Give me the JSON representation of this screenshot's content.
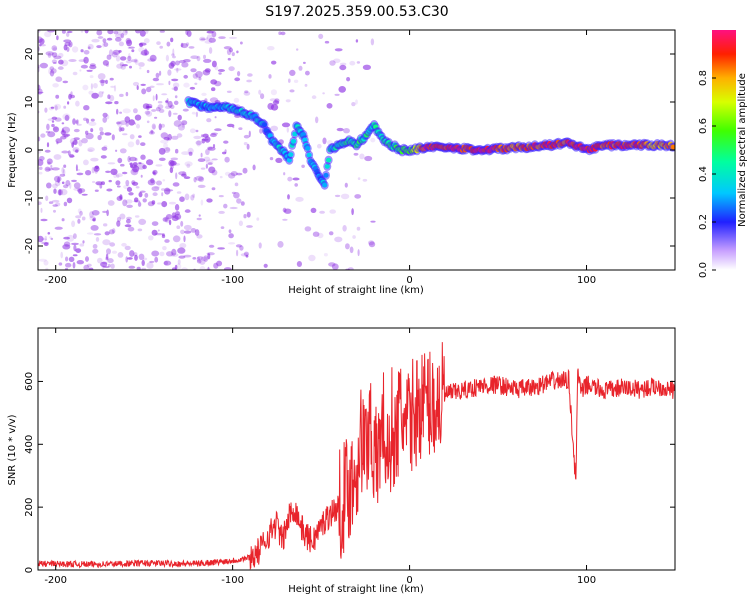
{
  "title": "S197.2025.359.00.53.C30",
  "colors": {
    "snr_line": "#e8242b",
    "axis": "#000000",
    "speckle": "#8a2be2"
  },
  "chart_data": [
    {
      "type": "heatmap",
      "name": "spectrogram",
      "xlabel": "Height of straight line (km)",
      "ylabel": "Frequency (Hz)",
      "xlim": [
        -210,
        150
      ],
      "ylim": [
        -25,
        25
      ],
      "xticks": [
        -200,
        -100,
        0,
        100
      ],
      "yticks": [
        -20,
        -10,
        0,
        10,
        20
      ],
      "ridge_track": {
        "x": [
          -125,
          -115,
          -105,
          -95,
          -88,
          -82,
          -78,
          -72,
          -68,
          -64,
          -60,
          -56,
          -52,
          -48,
          -45,
          -40,
          -35,
          -30,
          -25,
          -20,
          -15,
          -10,
          -5,
          0,
          10,
          20,
          40,
          60,
          80,
          90,
          100,
          110,
          120,
          140,
          150
        ],
        "y": [
          10,
          9,
          9,
          8,
          7,
          5,
          2,
          0,
          -2,
          5,
          3,
          -2,
          -5,
          -7,
          0,
          1,
          2,
          1,
          3,
          5,
          2,
          1,
          0,
          0,
          0.5,
          0.5,
          0,
          0.5,
          1,
          1.5,
          0,
          1,
          1,
          1,
          1
        ],
        "amplitude": [
          0.3,
          0.3,
          0.35,
          0.35,
          0.35,
          0.3,
          0.3,
          0.35,
          0.3,
          0.4,
          0.35,
          0.3,
          0.3,
          0.3,
          0.4,
          0.4,
          0.45,
          0.45,
          0.45,
          0.4,
          0.45,
          0.45,
          0.5,
          0.55,
          0.95,
          0.9,
          0.95,
          0.85,
          0.9,
          0.9,
          0.95,
          0.85,
          0.9,
          0.8,
          0.8
        ]
      },
      "colorbar": {
        "label": "Normalized spectral amplitude",
        "range": [
          0,
          1
        ],
        "ticks": [
          0.0,
          0.2,
          0.4,
          0.6,
          0.8
        ],
        "tick_labels": [
          "0.0",
          "0.2",
          "0.4",
          "0.6",
          "0.8"
        ]
      }
    },
    {
      "type": "line",
      "name": "snr",
      "xlabel": "Height of straight line (km)",
      "ylabel": "SNR (10 * v/v)",
      "xlim": [
        -210,
        150
      ],
      "ylim": [
        0,
        770
      ],
      "xticks": [
        -200,
        -100,
        0,
        100
      ],
      "yticks": [
        0,
        200,
        400,
        600
      ],
      "series": [
        {
          "name": "SNR",
          "x": [
            -210,
            -180,
            -150,
            -120,
            -100,
            -90,
            -85,
            -80,
            -75,
            -72,
            -68,
            -65,
            -60,
            -55,
            -50,
            -45,
            -40,
            -35,
            -30,
            -28,
            -25,
            -22,
            -20,
            -18,
            -15,
            -12,
            -10,
            -8,
            -5,
            -2,
            0,
            5,
            10,
            15,
            20,
            30,
            40,
            50,
            60,
            70,
            80,
            90,
            94,
            95,
            97,
            100,
            110,
            120,
            130,
            140,
            150
          ],
          "y": [
            20,
            18,
            22,
            20,
            30,
            40,
            60,
            110,
            150,
            90,
            170,
            200,
            120,
            90,
            140,
            180,
            200,
            260,
            310,
            430,
            370,
            500,
            330,
            360,
            480,
            310,
            470,
            400,
            520,
            430,
            480,
            520,
            540,
            520,
            560,
            570,
            585,
            590,
            575,
            580,
            600,
            605,
            270,
            640,
            560,
            590,
            570,
            580,
            575,
            585,
            570
          ]
        }
      ]
    }
  ]
}
